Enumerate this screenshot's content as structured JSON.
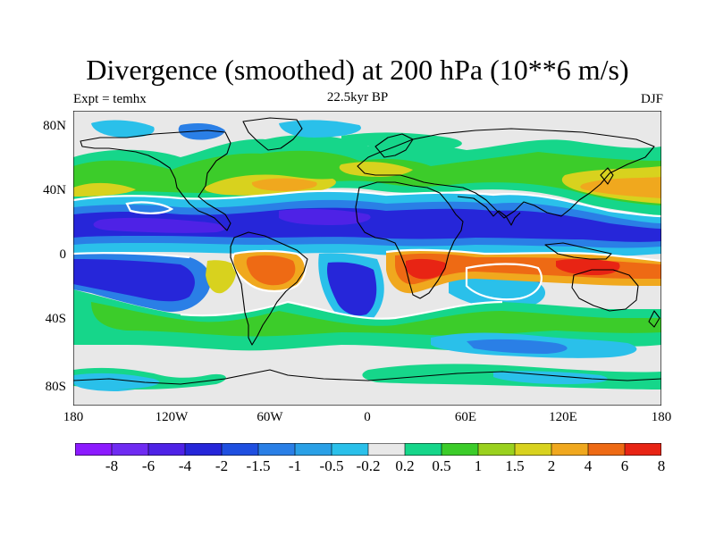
{
  "title": "Divergence (smoothed) at 200 hPa (10**6 m/s)",
  "subtitle_left": "Expt = temhx",
  "subtitle_center": "22.5kyr BP",
  "subtitle_right": "DJF",
  "lat_labels": [
    "80N",
    "40N",
    "0",
    "40S",
    "80S"
  ],
  "lon_labels": [
    "180",
    "120W",
    "60W",
    "0",
    "60E",
    "120E",
    "180"
  ],
  "colorbar": {
    "labels": [
      "-8",
      "-6",
      "-4",
      "-2",
      "-1.5",
      "-1",
      "-0.5",
      "-0.2",
      "0.2",
      "0.5",
      "1",
      "1.5",
      "2",
      "4",
      "6",
      "8"
    ],
    "colors": [
      "#8c1aff",
      "#6f2bf2",
      "#4e22e6",
      "#2626d9",
      "#1f4fe0",
      "#2a7fe6",
      "#2aa0e6",
      "#2ac0ea",
      "#e8e8e8",
      "#16d68a",
      "#3ccc2a",
      "#9ad11e",
      "#d8d21e",
      "#f0a81e",
      "#ee6a14",
      "#e82414"
    ]
  },
  "colors": {
    "land_outline": "#000000",
    "zero_contour": "#ffffff"
  }
}
